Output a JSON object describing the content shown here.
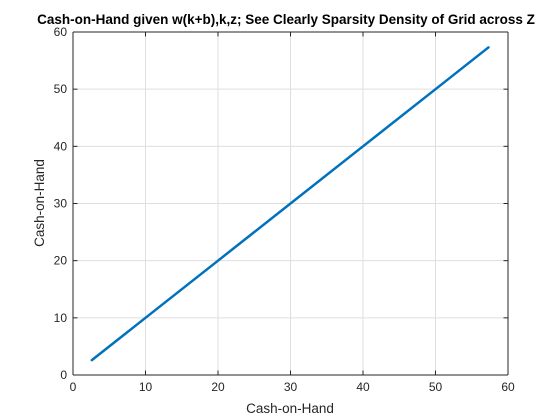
{
  "chart_data": {
    "type": "line",
    "title": "Cash-on-Hand given w(k+b),k,z; See Clearly Sparsity Density of Grid across Z",
    "xlabel": "Cash-on-Hand",
    "ylabel": "Cash-on-Hand",
    "xlim": [
      0,
      60
    ],
    "ylim": [
      0,
      60
    ],
    "xticks": [
      0,
      10,
      20,
      30,
      40,
      50,
      60
    ],
    "yticks": [
      0,
      10,
      20,
      30,
      40,
      50,
      60
    ],
    "grid": true,
    "box": true,
    "series": [
      {
        "color": "#0072bd",
        "x": [
          2.6,
          10,
          20,
          30,
          40,
          50,
          57.3
        ],
        "y": [
          2.6,
          10,
          20,
          30,
          40,
          50,
          57.3
        ]
      }
    ],
    "colors": {
      "axis": "#262626",
      "grid": "#dfdfdf",
      "line": "#0072bd",
      "background": "#ffffff"
    }
  }
}
